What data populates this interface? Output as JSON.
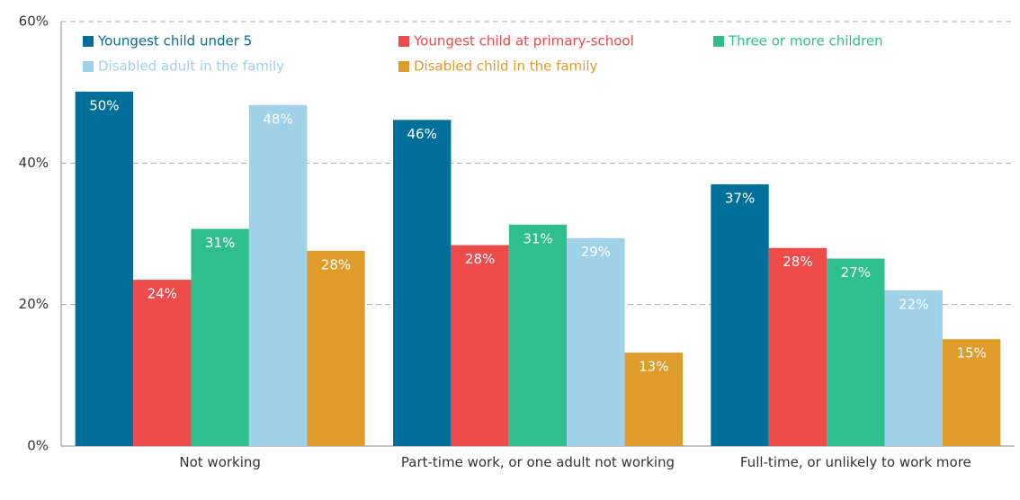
{
  "chart_data": {
    "type": "bar",
    "categories": [
      "Not working",
      "Part-time work, or one adult not working",
      "Full-time, or unlikely to work more"
    ],
    "series": [
      {
        "name": "Youngest child under 5",
        "color": "#006f9a",
        "values": [
          50.1,
          46.1,
          37.0
        ],
        "value_labels": [
          "50%",
          "46%",
          "37%"
        ]
      },
      {
        "name": "Youngest child at primary-school",
        "color": "#ee4b4b",
        "values": [
          23.5,
          28.4,
          28.0
        ],
        "value_labels": [
          "24%",
          "28%",
          "28%"
        ]
      },
      {
        "name": "Three or more children",
        "color": "#2fbf8f",
        "values": [
          30.7,
          31.3,
          26.5
        ],
        "value_labels": [
          "31%",
          "31%",
          "27%"
        ]
      },
      {
        "name": "Disabled adult in the family",
        "color": "#9fd1e8",
        "values": [
          48.2,
          29.4,
          22.0
        ],
        "value_labels": [
          "48%",
          "29%",
          "22%"
        ]
      },
      {
        "name": "Disabled child in the family",
        "color": "#e09c2a",
        "values": [
          27.6,
          13.2,
          15.1
        ],
        "value_labels": [
          "28%",
          "13%",
          "15%"
        ]
      }
    ],
    "ylim": [
      0,
      60
    ],
    "yticks": [
      {
        "value": 0,
        "label": "0%"
      },
      {
        "value": 20,
        "label": "20%"
      },
      {
        "value": 40,
        "label": "40%"
      },
      {
        "value": 60,
        "label": "60%"
      }
    ],
    "grid": true
  }
}
